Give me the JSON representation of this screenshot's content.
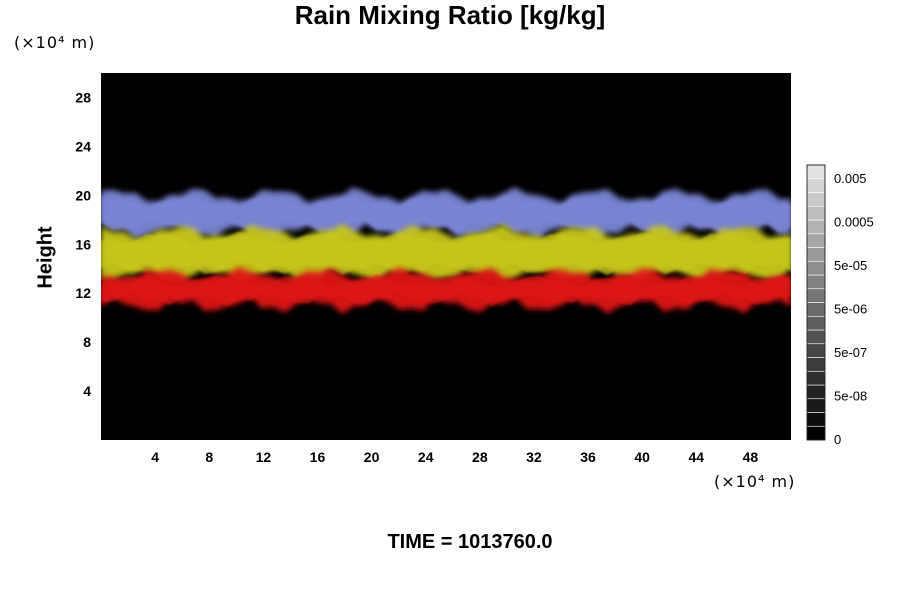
{
  "chart_data": {
    "type": "heatmap",
    "title": "Rain Mixing Ratio [kg/kg]",
    "ylabel": "Height",
    "xlabel": "",
    "x_unit": "(×10⁴ m)",
    "y_unit": "(×10⁴ m)",
    "x_ticks": [
      "4",
      "8",
      "12",
      "16",
      "20",
      "24",
      "28",
      "32",
      "36",
      "40",
      "44",
      "48"
    ],
    "y_ticks": [
      "4",
      "8",
      "12",
      "16",
      "20",
      "24",
      "28"
    ],
    "xlim": [
      0,
      51
    ],
    "ylim": [
      0,
      30
    ],
    "background_color": "#000000",
    "layers": [
      {
        "name": "",
        "color": "#7b86d6",
        "y_range": [
          17,
          20
        ]
      },
      {
        "name": "",
        "color": "#c8c81e",
        "y_range": [
          13.5,
          17
        ]
      },
      {
        "name": "",
        "color": "#e01818",
        "y_range": [
          11,
          13.5
        ]
      }
    ],
    "colorbar": {
      "labels": [
        "0.005",
        "0.0005",
        "5e-05",
        "5e-06",
        "5e-07",
        "5e-08",
        "0"
      ],
      "levels": 20
    },
    "footer": "TIME = 1013760.0"
  }
}
